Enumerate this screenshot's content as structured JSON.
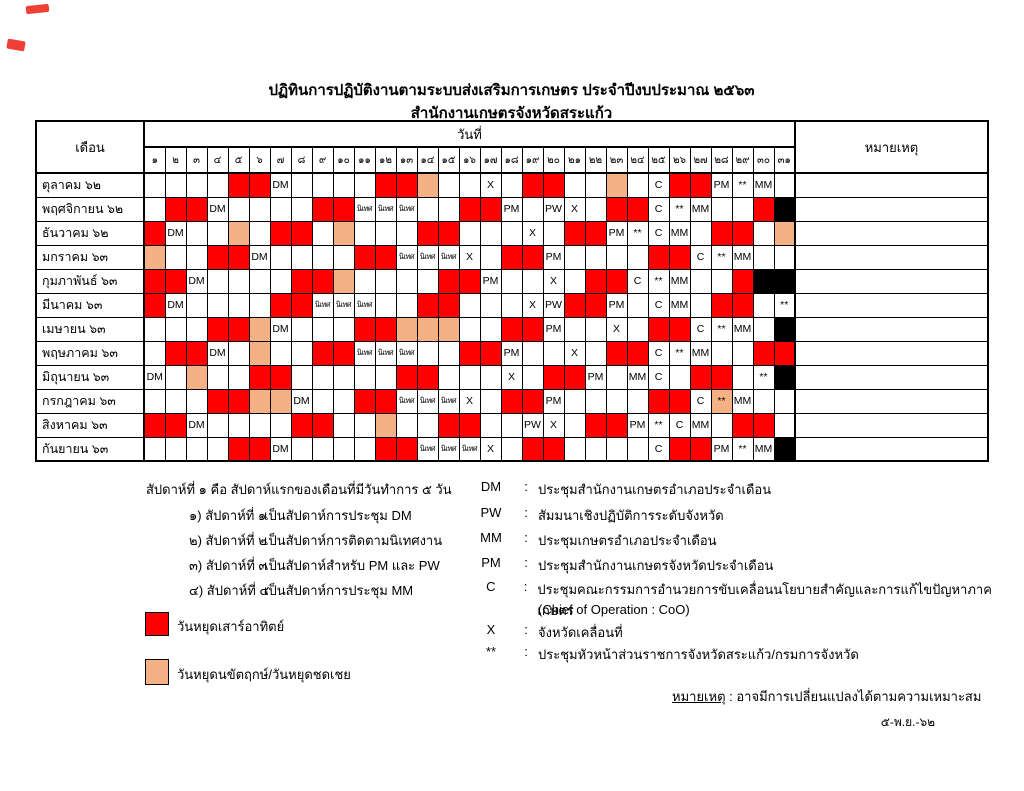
{
  "title": "ปฏิทินการปฏิบัติงานตามระบบส่งเสริมการเกษตร ประจำปีงบประมาณ ๒๕๖๓",
  "subtitle": "สำนักงานเกษตรจังหวัดสระแก้ว",
  "cell_colors": {
    "R": "#ff0000",
    "O": "#f4b183",
    "B": "#000000"
  },
  "table": {
    "month_header": "เดือน",
    "date_header": "วันที่",
    "remarks_header": "หมายเหตุ",
    "day_numbers": [
      "๑",
      "๒",
      "๓",
      "๔",
      "๕",
      "๖",
      "๗",
      "๘",
      "๙",
      "๑๐",
      "๑๑",
      "๑๒",
      "๑๓",
      "๑๔",
      "๑๕",
      "๑๖",
      "๑๗",
      "๑๘",
      "๑๙",
      "๒๐",
      "๒๑",
      "๒๒",
      "๒๓",
      "๒๔",
      "๒๕",
      "๒๖",
      "๒๗",
      "๒๘",
      "๒๙",
      "๓๐",
      "๓๑"
    ],
    "months": [
      {
        "label": "ตุลาคม ๖๒",
        "days": [
          "",
          "",
          "",
          "",
          "R",
          "R",
          "DM",
          "",
          "",
          "",
          "",
          "R",
          "R",
          "O",
          "",
          "",
          "X",
          "",
          "R",
          "R",
          "",
          "",
          "O",
          "",
          "C",
          "R",
          "R",
          "PM",
          "**",
          "MM",
          ""
        ]
      },
      {
        "label": "พฤศจิกายน ๖๒",
        "days": [
          "",
          "R",
          "R",
          "DM",
          "",
          "",
          "",
          "",
          "R",
          "R",
          "นิเทศ",
          "นิเทศ",
          "นิเทศ",
          "",
          "",
          "R",
          "R",
          "PM",
          "",
          "PW",
          "X",
          "",
          "R",
          "R",
          "C",
          "**",
          "MM",
          "",
          "",
          "R",
          "B"
        ]
      },
      {
        "label": "ธันวาคม ๖๒",
        "days": [
          "R",
          "DM",
          "",
          "",
          "O",
          "",
          "R",
          "R",
          "",
          "O",
          "",
          "",
          "",
          "R",
          "R",
          "",
          "",
          "",
          "X",
          "",
          "R",
          "R",
          "PM",
          "**",
          "C",
          "MM",
          "",
          "R",
          "R",
          "",
          "O"
        ]
      },
      {
        "label": "มกราคม ๖๓",
        "days": [
          "O",
          "",
          "",
          "R",
          "R",
          "DM",
          "",
          "",
          "",
          "",
          "R",
          "R",
          "นิเทศ",
          "นิเทศ",
          "นิเทศ",
          "X",
          "",
          "R",
          "R",
          "PM",
          "",
          "",
          "",
          "",
          "R",
          "R",
          "C",
          "**",
          "MM",
          "",
          ""
        ]
      },
      {
        "label": "กุมภาพันธ์ ๖๓",
        "days": [
          "R",
          "R",
          "DM",
          "",
          "",
          "",
          "",
          "R",
          "R",
          "O",
          "",
          "",
          "",
          "",
          "R",
          "R",
          "PM",
          "",
          "",
          "X",
          "",
          "R",
          "R",
          "C",
          "**",
          "MM",
          "",
          "",
          "R",
          "B",
          "B"
        ]
      },
      {
        "label": "มีนาคม ๖๓",
        "days": [
          "R",
          "DM",
          "",
          "",
          "",
          "",
          "R",
          "R",
          "นิเทศ",
          "นิเทศ",
          "นิเทศ",
          "",
          "",
          "R",
          "R",
          "",
          "",
          "",
          "X",
          "PW",
          "R",
          "R",
          "PM",
          "",
          "C",
          "MM",
          "",
          "R",
          "R",
          "",
          "**"
        ]
      },
      {
        "label": "เมษายน ๖๓",
        "days": [
          "",
          "",
          "",
          "R",
          "R",
          "O",
          "DM",
          "",
          "",
          "",
          "R",
          "R",
          "O",
          "O",
          "O",
          "",
          "",
          "R",
          "R",
          "PM",
          "",
          "",
          "X",
          "",
          "R",
          "R",
          "C",
          "**",
          "MM",
          "",
          "B"
        ]
      },
      {
        "label": "พฤษภาคม ๖๓",
        "days": [
          "",
          "R",
          "R",
          "DM",
          "",
          "O",
          "",
          "",
          "R",
          "R",
          "นิเทศ",
          "นิเทศ",
          "นิเทศ",
          "",
          "",
          "R",
          "R",
          "PM",
          "",
          "",
          "X",
          "",
          "R",
          "R",
          "C",
          "**",
          "MM",
          "",
          "",
          "R",
          "R"
        ]
      },
      {
        "label": "มิถุนายน ๖๓",
        "days": [
          "DM",
          "",
          "O",
          "",
          "",
          "R",
          "R",
          "",
          "",
          "",
          "",
          "",
          "R",
          "R",
          "",
          "",
          "",
          "X",
          "",
          "R",
          "R",
          "PM",
          "",
          "MM",
          "C",
          "",
          "R",
          "R",
          "",
          "**",
          "B"
        ]
      },
      {
        "label": "กรกฎาคม ๖๓",
        "days": [
          "",
          "",
          "",
          "R",
          "R",
          "O",
          "O",
          "DM",
          "",
          "",
          "R",
          "R",
          "นิเทศ",
          "นิเทศ",
          "นิเทศ",
          "X",
          "",
          "R",
          "R",
          "PM",
          "",
          "",
          "",
          "",
          "R",
          "R",
          "C",
          "O:**",
          "MM",
          "",
          ""
        ]
      },
      {
        "label": "สิงหาคม ๖๓",
        "days": [
          "R",
          "R",
          "DM",
          "",
          "",
          "",
          "",
          "R",
          "R",
          "",
          "",
          "O",
          "",
          "",
          "R",
          "R",
          "",
          "",
          "PW",
          "X",
          "",
          "R",
          "R",
          "PM",
          "**",
          "C",
          "MM",
          "",
          "R",
          "R",
          ""
        ]
      },
      {
        "label": "กันยายน ๖๓",
        "days": [
          "",
          "",
          "",
          "",
          "R",
          "R",
          "DM",
          "",
          "",
          "",
          "",
          "R",
          "R",
          "นิเทศ",
          "นิเทศ",
          "นิเทศ",
          "X",
          "",
          "R",
          "R",
          "",
          "",
          "",
          "",
          "C",
          "R",
          "R",
          "PM",
          "**",
          "MM",
          "B"
        ]
      }
    ]
  },
  "legend_left": {
    "intro": "สัปดาห์ที่ ๑ คือ สัปดาห์แรกของเดือนที่มีวันทำการ ๕ วัน",
    "items": [
      {
        "num": "๑) สัปดาห์ที่ ๑",
        "desc": "เป็นสัปดาห์การประชุม DM"
      },
      {
        "num": "๒) สัปดาห์ที่ ๒",
        "desc": "เป็นสัปดาห์การติดตามนิเทศงาน"
      },
      {
        "num": "๓) สัปดาห์ที่ ๓",
        "desc": "เป็นสัปดาห์สำหรับ PM และ PW"
      },
      {
        "num": "๔) สัปดาห์ที่ ๔",
        "desc": "เป็นสัปดาห์การประชุม MM"
      }
    ]
  },
  "legend_right": {
    "items": [
      {
        "code": "DM",
        "colon": ":",
        "desc": "ประชุมสำนักงานเกษตรอำเภอประจำเดือน"
      },
      {
        "code": "PW",
        "colon": ":",
        "desc": "สัมมนาเชิงปฏิบัติการระดับจังหวัด"
      },
      {
        "code": "MM",
        "colon": ":",
        "desc": "ประชุมเกษตรอำเภอประจำเดือน"
      },
      {
        "code": "PM",
        "colon": ":",
        "desc": "ประชุมสำนักงานเกษตรจังหวัดประจำเดือน"
      },
      {
        "code": "C",
        "colon": ":",
        "desc": "ประชุมคณะกรรมการอำนวยการขับเคลื่อนนโยบายสำคัญและการแก้ไขปัญหาภาคเกษตร"
      },
      {
        "code": "",
        "colon": "",
        "desc": "(Chief of Operation : CoO)"
      },
      {
        "code": "X",
        "colon": ":",
        "desc": "จังหวัดเคลื่อนที่"
      },
      {
        "code": "**",
        "colon": ":",
        "desc": "ประชุมหัวหน้าส่วนราชการจังหวัดสระแก้ว/กรมการจังหวัด"
      }
    ]
  },
  "swatches": {
    "weekend": {
      "color": "#ff0000",
      "label": "วันหยุดเสาร์อาทิตย์"
    },
    "holiday": {
      "color": "#f4b183",
      "label": "วันหยุดนขัตฤกษ์/วันหยุดชดเชย"
    }
  },
  "footnote": {
    "label": "หมายเหตุ",
    "text": " : อาจมีการเปลี่ยนแปลงได้ตามความเหมาะสม"
  },
  "date_stamp": "๕-พ.ย.-๖๒"
}
